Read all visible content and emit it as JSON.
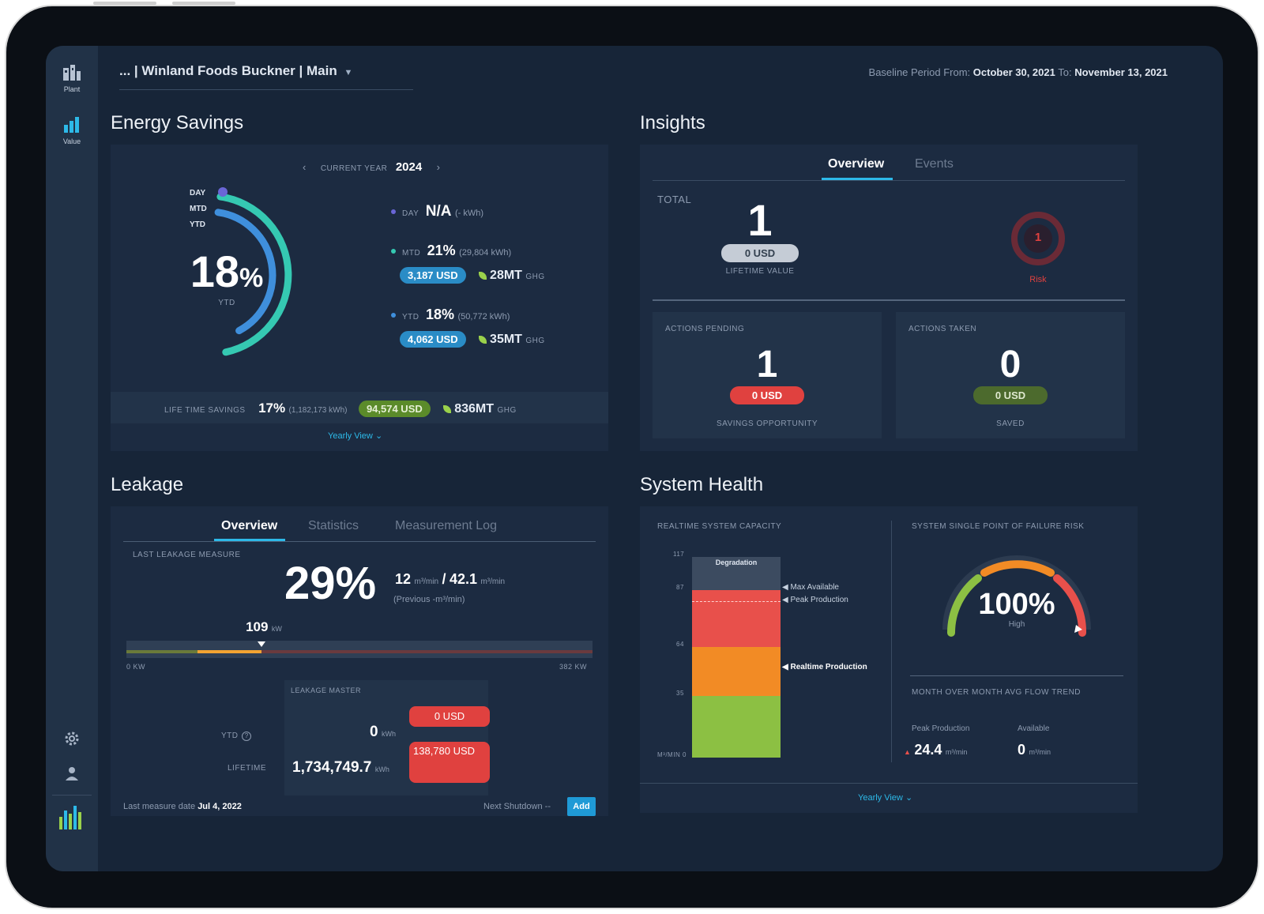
{
  "header": {
    "site_selector": "... | Winland Foods Buckner | Main",
    "baseline_label": "Baseline Period From:",
    "baseline_from": "October 30, 2021",
    "baseline_to_label": "To:",
    "baseline_to": "November 13, 2021"
  },
  "sidebar": {
    "items": [
      {
        "label": "Plant",
        "icon": "building-icon"
      },
      {
        "label": "Value",
        "icon": "bar-chart-icon"
      }
    ]
  },
  "energy": {
    "title": "Energy Savings",
    "year_label": "CURRENT YEAR",
    "year": "2024",
    "ring_day": "DAY",
    "ring_mtd": "MTD",
    "ring_ytd": "YTD",
    "main_value": "18",
    "main_unit": "%",
    "main_sub": "YTD",
    "mtd_fraction": 0.21,
    "ytd_fraction": 0.18,
    "day": {
      "label": "DAY",
      "value": "N/A",
      "detail": "(- kWh)"
    },
    "mtd": {
      "label": "MTD",
      "value": "21%",
      "detail": "(29,804 kWh)",
      "usd": "3,187 USD",
      "ghg": "28MT",
      "ghg_unit": "GHG"
    },
    "ytd": {
      "label": "YTD",
      "value": "18%",
      "detail": "(50,772 kWh)",
      "usd": "4,062 USD",
      "ghg": "35MT",
      "ghg_unit": "GHG"
    },
    "lifetime": {
      "label": "LIFE TIME SAVINGS",
      "value": "17%",
      "detail": "(1,182,173 kWh)",
      "usd": "94,574 USD",
      "ghg": "836MT",
      "ghg_unit": "GHG"
    },
    "yearly_view": "Yearly View"
  },
  "insights": {
    "title": "Insights",
    "tabs": [
      "Overview",
      "Events"
    ],
    "total_label": "TOTAL",
    "total_value": "1",
    "total_usd": "0 USD",
    "total_sub": "LIFETIME VALUE",
    "risk_value": "1",
    "risk_label": "Risk",
    "pending": {
      "label": "ACTIONS PENDING",
      "value": "1",
      "usd": "0 USD",
      "sub": "SAVINGS OPPORTUNITY"
    },
    "taken": {
      "label": "ACTIONS TAKEN",
      "value": "0",
      "usd": "0 USD",
      "sub": "SAVED"
    }
  },
  "leakage": {
    "title": "Leakage",
    "tabs": [
      "Overview",
      "Statistics",
      "Measurement Log"
    ],
    "last_label": "LAST LEAKAGE MEASURE",
    "percent": "29%",
    "flow_leak": "12",
    "flow_leak_unit": "m³/min",
    "flow_sep": "/",
    "flow_total": "42.1",
    "flow_total_unit": "m³/min",
    "previous": "(Previous -m³/min)",
    "marker_value": "109",
    "marker_unit": "kW",
    "marker_fraction": 0.29,
    "bar_min": "0 kW",
    "bar_max": "382 kW",
    "master_label": "LEAKAGE MASTER",
    "ytd_label": "YTD",
    "ytd_value": "0",
    "ytd_unit": "kWh",
    "ytd_usd": "0 USD",
    "lifetime_label": "LIFETIME",
    "lifetime_value": "1,734,749.7",
    "lifetime_unit": "kWh",
    "lifetime_usd": "138,780 USD",
    "last_measure_label": "Last measure date",
    "last_measure_date": "Jul 4, 2022",
    "next_shutdown": "Next Shutdown --",
    "add_button": "Add"
  },
  "health": {
    "title": "System Health",
    "capacity_label": "REALTIME SYSTEM CAPACITY",
    "spof_label": "SYSTEM SINGLE POINT OF FAILURE RISK",
    "degradation": "Degradation",
    "max_available": "Max Available",
    "peak_production": "Peak Production",
    "realtime_production": "Realtime Production",
    "y_ticks": [
      "117",
      "87",
      "64",
      "35",
      "0"
    ],
    "y_unit": "m³/min",
    "gauge_value": "100%",
    "gauge_level": "High",
    "trend_label": "MONTH OVER MONTH AVG FLOW TREND",
    "peak_label": "Peak Production",
    "peak_value": "24.4",
    "peak_unit": "m³/min",
    "avail_label": "Available",
    "avail_value": "0",
    "avail_unit": "m³/min",
    "yearly_view": "Yearly View"
  },
  "colors": {
    "accent": "#2db9e8",
    "mtd_ring": "#35c9b2",
    "ytd_ring": "#3f8fdc",
    "day_dot": "#6a66d6",
    "risk_red": "#e0413f",
    "usd_blue": "#2a8cc6",
    "saved_green": "#4c6a2d"
  }
}
